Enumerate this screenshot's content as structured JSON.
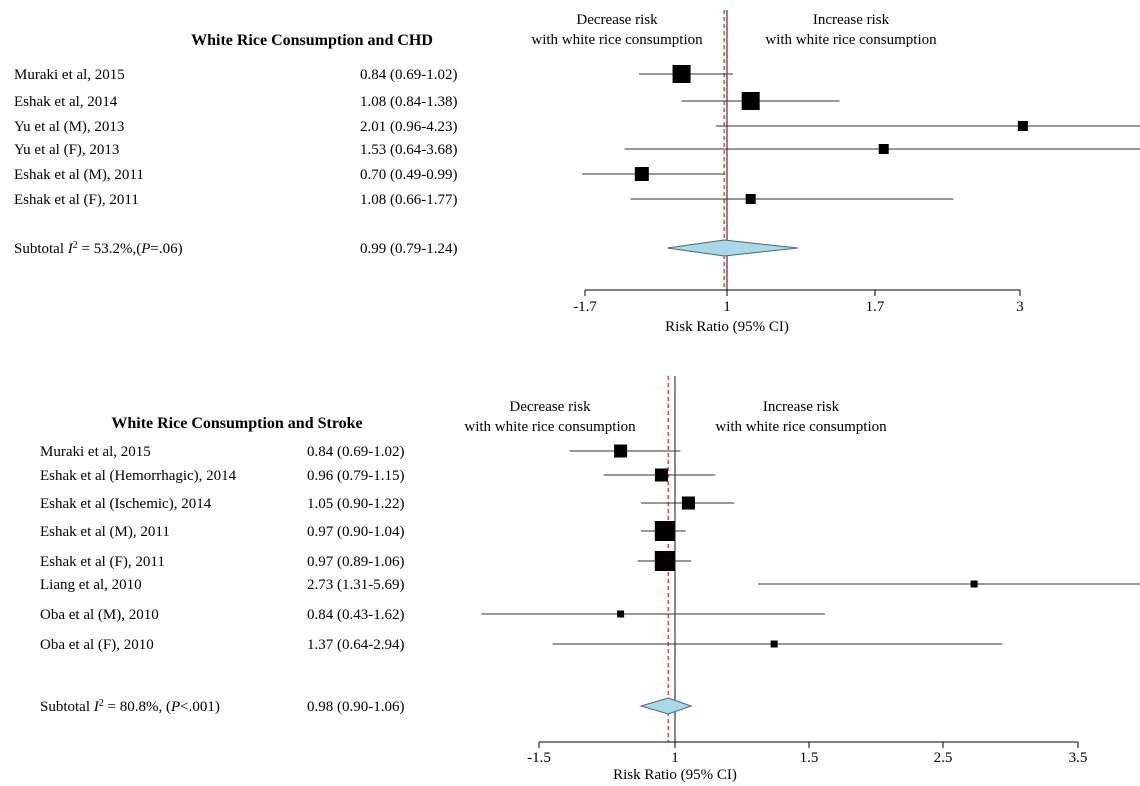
{
  "chart_data": [
    {
      "type": "forest",
      "title": "White Rice Consumption and CHD",
      "xlabel": "Risk Ratio (95% CI)",
      "annotation_left": [
        "Decrease risk",
        "with white rice consumption"
      ],
      "annotation_right": [
        "Increase risk",
        "with white rice consumption"
      ],
      "ticks": [
        "-1.7",
        "1",
        "1.7",
        "3"
      ],
      "null_value": 1,
      "pooled_line": 0.99,
      "studies": [
        {
          "label": "Muraki et al, 2015",
          "ci_text": "0.84 (0.69-1.02)",
          "rr": 0.84,
          "lo": 0.69,
          "hi": 1.02,
          "weight": "large"
        },
        {
          "label": "Eshak et al, 2014",
          "ci_text": "1.08 (0.84-1.38)",
          "rr": 1.08,
          "lo": 0.84,
          "hi": 1.38,
          "weight": "large"
        },
        {
          "label": "Yu et al (M), 2013",
          "ci_text": "2.01 (0.96-4.23)",
          "rr": 2.01,
          "lo": 0.96,
          "hi": 4.23,
          "weight": "small"
        },
        {
          "label": "Yu et al (F), 2013",
          "ci_text": "1.53 (0.64-3.68)",
          "rr": 1.53,
          "lo": 0.64,
          "hi": 3.68,
          "weight": "small"
        },
        {
          "label": "Eshak et al (M), 2011",
          "ci_text": "0.70 (0.49-0.99)",
          "rr": 0.7,
          "lo": 0.49,
          "hi": 0.99,
          "weight": "medium"
        },
        {
          "label": "Eshak et al (F), 2011",
          "ci_text": "1.08 (0.66-1.77)",
          "rr": 1.08,
          "lo": 0.66,
          "hi": 1.77,
          "weight": "small"
        }
      ],
      "subtotal": {
        "label_prefix": "Subtotal ",
        "i2_symbol": "I",
        "i2_sup": "2",
        "label_rest": " = 53.2%,(",
        "p_symbol": "P",
        "p_rest": "=.06)",
        "ci_text": "0.99 (0.79-1.24)",
        "rr": 0.99,
        "lo": 0.79,
        "hi": 1.24
      }
    },
    {
      "type": "forest",
      "title": "White Rice Consumption and Stroke",
      "xlabel": "Risk Ratio (95% CI)",
      "annotation_left": [
        "Decrease risk",
        "with white rice consumption"
      ],
      "annotation_right": [
        "Increase risk",
        "with white rice consumption"
      ],
      "ticks": [
        "-1.5",
        "1",
        "1.5",
        "2.5",
        "3.5"
      ],
      "null_value": 1,
      "pooled_line": 0.98,
      "studies": [
        {
          "label": "Muraki et al, 2015",
          "ci_text": "0.84 (0.69-1.02)",
          "rr": 0.84,
          "lo": 0.69,
          "hi": 1.02,
          "weight": "small"
        },
        {
          "label": "Eshak et al (Hemorrhagic), 2014",
          "ci_text": "0.96 (0.79-1.15)",
          "rr": 0.96,
          "lo": 0.79,
          "hi": 1.15,
          "weight": "small"
        },
        {
          "label": "Eshak et al (Ischemic), 2014",
          "ci_text": "1.05 (0.90-1.22)",
          "rr": 1.05,
          "lo": 0.9,
          "hi": 1.22,
          "weight": "small"
        },
        {
          "label": "Eshak et al (M), 2011",
          "ci_text": "0.97 (0.90-1.04)",
          "rr": 0.97,
          "lo": 0.9,
          "hi": 1.04,
          "weight": "large"
        },
        {
          "label": "Eshak et al (F), 2011",
          "ci_text": "0.97 (0.89-1.06)",
          "rr": 0.97,
          "lo": 0.89,
          "hi": 1.06,
          "weight": "large"
        },
        {
          "label": "Liang et al, 2010",
          "ci_text": "2.73 (1.31-5.69)",
          "rr": 2.73,
          "lo": 1.31,
          "hi": 5.69,
          "weight": "tiny"
        },
        {
          "label": "Oba et al (M), 2010",
          "ci_text": "0.84 (0.43-1.62)",
          "rr": 0.84,
          "lo": 0.43,
          "hi": 1.62,
          "weight": "tiny"
        },
        {
          "label": "Oba et al (F), 2010",
          "ci_text": "1.37 (0.64-2.94)",
          "rr": 1.37,
          "lo": 0.64,
          "hi": 2.94,
          "weight": "tiny"
        }
      ],
      "subtotal": {
        "label_prefix": "Subtotal ",
        "i2_symbol": "I",
        "i2_sup": "2",
        "label_rest": " = 80.8%, (",
        "p_symbol": "P",
        "p_rest": "<.001)",
        "ci_text": "0.98 (0.90-1.06)",
        "rr": 0.98,
        "lo": 0.9,
        "hi": 1.06
      }
    }
  ],
  "colors": {
    "marker": "#000000",
    "diamond_fill": "#a9d9e6",
    "diamond_stroke": "#4a6a7a",
    "reference_line": "#e03030"
  }
}
